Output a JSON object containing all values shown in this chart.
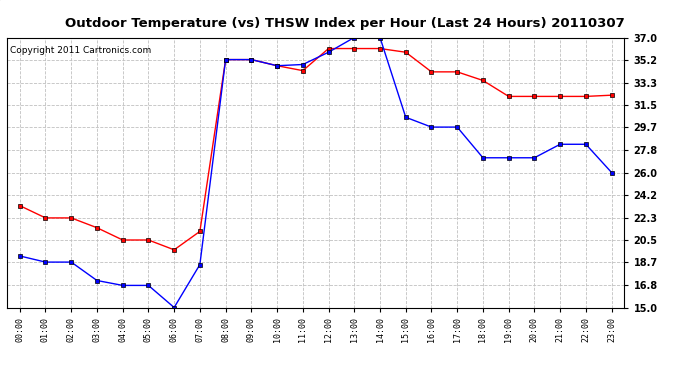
{
  "title": "Outdoor Temperature (vs) THSW Index per Hour (Last 24 Hours) 20110307",
  "copyright": "Copyright 2011 Cartronics.com",
  "hours": [
    "00:00",
    "01:00",
    "02:00",
    "03:00",
    "04:00",
    "05:00",
    "06:00",
    "07:00",
    "08:00",
    "09:00",
    "10:00",
    "11:00",
    "12:00",
    "13:00",
    "14:00",
    "15:00",
    "16:00",
    "17:00",
    "18:00",
    "19:00",
    "20:00",
    "21:00",
    "22:00",
    "23:00"
  ],
  "temp_red": [
    23.3,
    22.3,
    22.3,
    21.5,
    20.5,
    20.5,
    19.7,
    21.2,
    35.2,
    35.2,
    34.7,
    34.3,
    36.1,
    36.1,
    36.1,
    35.8,
    34.2,
    34.2,
    33.5,
    32.2,
    32.2,
    32.2,
    32.2,
    32.3
  ],
  "thsw_blue": [
    19.2,
    18.7,
    18.7,
    17.2,
    16.8,
    16.8,
    15.0,
    18.5,
    35.2,
    35.2,
    34.7,
    34.8,
    35.8,
    37.0,
    37.0,
    30.5,
    29.7,
    29.7,
    27.2,
    27.2,
    27.2,
    28.3,
    28.3,
    26.0
  ],
  "ylim": [
    15.0,
    37.0
  ],
  "yticks": [
    15.0,
    16.8,
    18.7,
    20.5,
    22.3,
    24.2,
    26.0,
    27.8,
    29.7,
    31.5,
    33.3,
    35.2,
    37.0
  ],
  "red_color": "#ff0000",
  "blue_color": "#0000ff",
  "bg_color": "#ffffff",
  "plot_bg": "#ffffff",
  "grid_color": "#c0c0c0",
  "title_fontsize": 9.5,
  "copyright_fontsize": 6.5
}
